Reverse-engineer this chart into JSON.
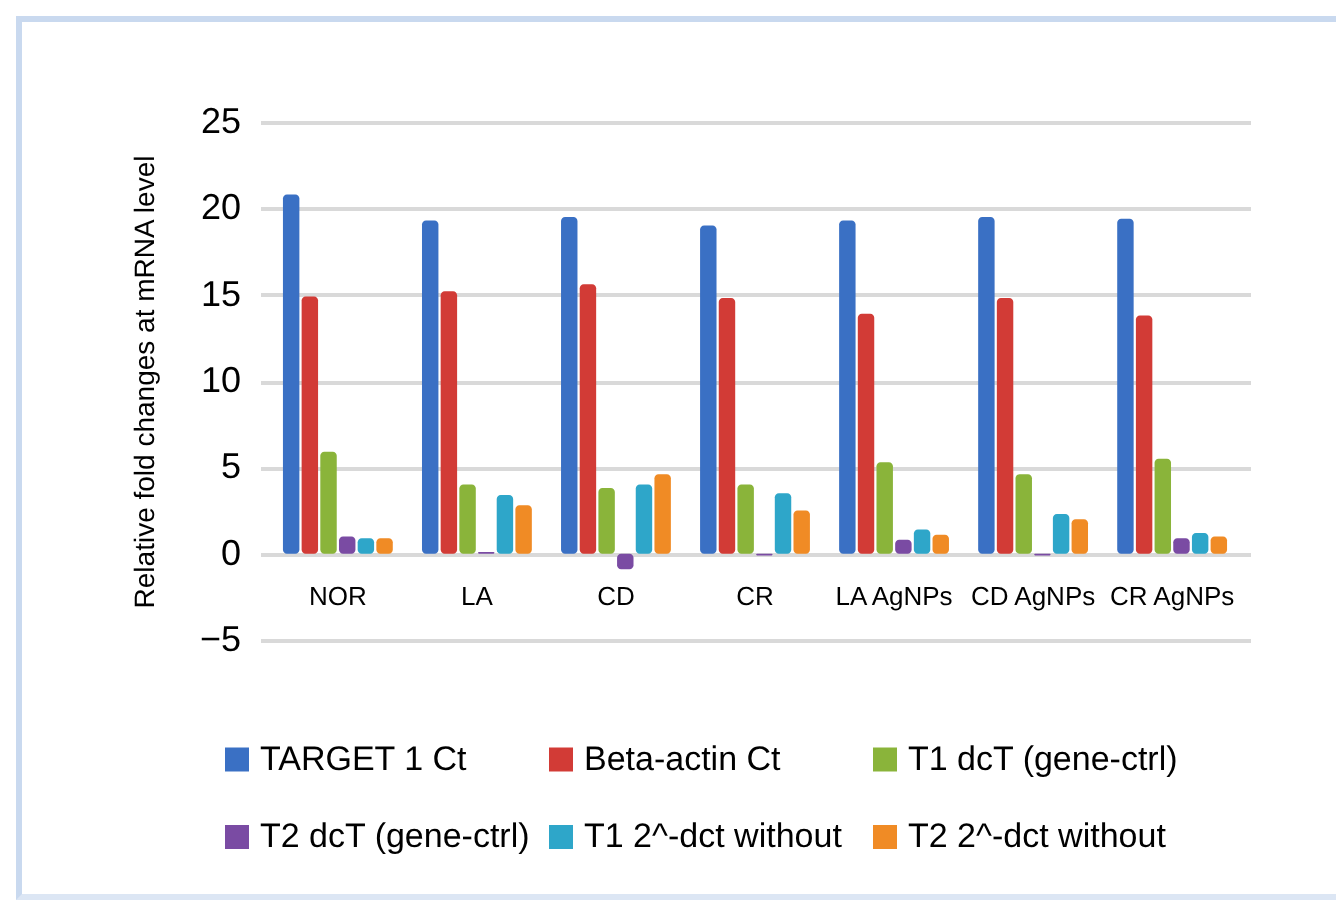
{
  "chart_data": {
    "type": "bar",
    "ylabel": "Relative fold changes at mRNA level",
    "categories": [
      "NOR",
      "LA",
      "CD",
      "CR",
      "LA AgNPs",
      "CD AgNPs",
      "CR AgNPs"
    ],
    "series": [
      {
        "name": "TARGET 1 Ct",
        "color": "#3a70c4",
        "values": [
          20.8,
          19.3,
          19.5,
          19.0,
          19.3,
          19.5,
          19.4
        ]
      },
      {
        "name": "Beta-actin Ct",
        "color": "#d23b36",
        "values": [
          14.9,
          15.2,
          15.6,
          14.8,
          13.9,
          14.8,
          13.8
        ]
      },
      {
        "name": "T1 dcT (gene-ctrl)",
        "color": "#8ab43a",
        "values": [
          5.9,
          4.0,
          3.8,
          4.0,
          5.3,
          4.6,
          5.5
        ]
      },
      {
        "name": "T2 dcT (gene-ctrl)",
        "color": "#7a4ba3",
        "values": [
          1.0,
          0.1,
          -0.9,
          -0.1,
          0.8,
          -0.1,
          0.9
        ]
      },
      {
        "name": "T1 2^-dct without",
        "color": "#2ea6c9",
        "values": [
          0.9,
          3.4,
          4.0,
          3.5,
          1.4,
          2.3,
          1.2
        ]
      },
      {
        "name": "T2 2^-dct without",
        "color": "#f08b25",
        "values": [
          0.9,
          2.8,
          4.6,
          2.5,
          1.1,
          2.0,
          1.0
        ]
      }
    ],
    "ylim": [
      -5,
      25
    ],
    "yticks": [
      -5,
      0,
      5,
      10,
      15,
      20,
      25
    ],
    "grid": "y",
    "legend": "bottom"
  }
}
